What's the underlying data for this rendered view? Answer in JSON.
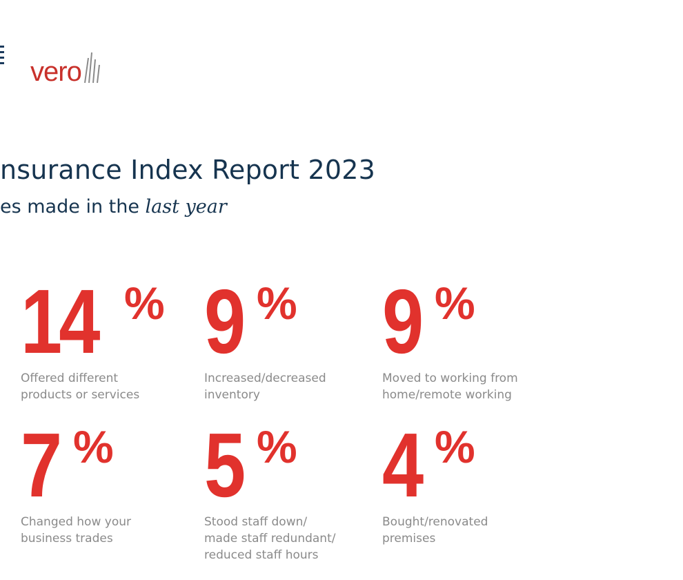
{
  "logo": {
    "text": "vero"
  },
  "header": {
    "title": "nsurance Index Report 2023",
    "subtitle_prefix": "es made in the ",
    "subtitle_emphasis": "last year"
  },
  "stats": [
    {
      "value": "14",
      "unit": "%",
      "label_line1": "Offered different",
      "label_line2": "products or services",
      "label_line3": ""
    },
    {
      "value": "9",
      "unit": "%",
      "label_line1": "Increased/decreased",
      "label_line2": "inventory",
      "label_line3": ""
    },
    {
      "value": "9",
      "unit": "%",
      "label_line1": "Moved to working from",
      "label_line2": "home/remote working",
      "label_line3": ""
    },
    {
      "value": "7",
      "unit": "%",
      "label_line1": "Changed how your",
      "label_line2": "business trades",
      "label_line3": ""
    },
    {
      "value": "5",
      "unit": "%",
      "label_line1": "Stood staff down/",
      "label_line2": "made staff redundant/",
      "label_line3": "reduced staff hours"
    },
    {
      "value": "4",
      "unit": "%",
      "label_line1": "Bought/renovated",
      "label_line2": "premises",
      "label_line3": ""
    }
  ],
  "colors": {
    "accent": "#e1322d",
    "heading": "#16344f",
    "label": "#8a8a8a",
    "logo": "#c8312b"
  }
}
